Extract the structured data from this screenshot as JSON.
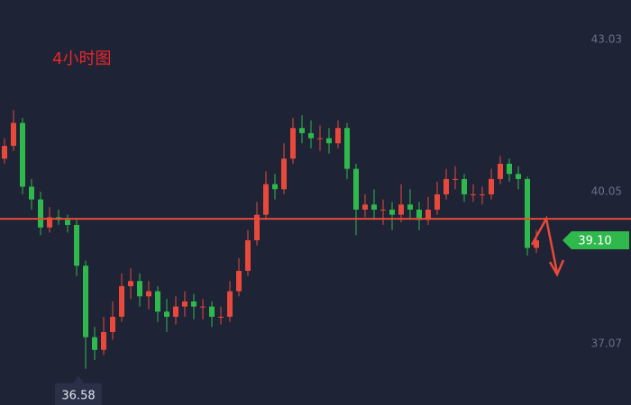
{
  "chart_data": {
    "type": "candlestick",
    "title": "4小时图",
    "open": [
      40.7,
      40.95,
      41.4,
      40.15,
      39.9,
      39.35,
      39.55,
      39.5,
      39.4,
      38.6,
      37.2,
      36.95,
      37.3,
      37.6,
      38.2,
      38.3,
      38.0,
      38.1,
      37.7,
      37.6,
      37.8,
      37.9,
      37.8,
      37.8,
      37.6,
      37.6,
      38.1,
      38.5,
      39.1,
      39.6,
      40.2,
      40.1,
      40.7,
      41.3,
      41.2,
      41.1,
      41.1,
      41.0,
      41.3,
      40.5,
      39.7,
      39.8,
      39.7,
      39.7,
      39.6,
      39.8,
      39.7,
      39.5,
      39.7,
      40.0,
      40.3,
      40.3,
      40.0,
      40.0,
      40.0,
      40.3,
      40.6,
      40.4,
      40.3,
      38.95
    ],
    "high": [
      41.1,
      41.65,
      41.5,
      40.3,
      40.05,
      39.75,
      39.7,
      39.6,
      39.5,
      38.7,
      37.4,
      37.6,
      37.9,
      38.45,
      38.55,
      38.45,
      38.3,
      38.2,
      37.95,
      38.0,
      38.1,
      38.05,
      37.95,
      37.9,
      37.8,
      38.3,
      38.75,
      39.3,
      39.85,
      40.45,
      40.4,
      41.0,
      41.5,
      41.55,
      41.45,
      41.35,
      41.3,
      41.45,
      41.4,
      40.6,
      40.0,
      40.1,
      39.9,
      39.85,
      40.2,
      40.1,
      39.85,
      39.95,
      40.25,
      40.5,
      40.55,
      40.4,
      40.2,
      40.15,
      40.5,
      40.75,
      40.7,
      40.55,
      40.35,
      39.3
    ],
    "low": [
      40.6,
      40.85,
      40.0,
      39.7,
      39.2,
      39.25,
      39.4,
      39.25,
      38.4,
      36.58,
      36.75,
      36.85,
      37.15,
      37.5,
      37.95,
      37.8,
      37.75,
      37.5,
      37.3,
      37.45,
      37.6,
      37.55,
      37.55,
      37.4,
      37.45,
      37.5,
      38.0,
      38.4,
      39.0,
      39.5,
      39.9,
      40.0,
      40.6,
      41.0,
      40.9,
      40.85,
      40.8,
      40.9,
      40.3,
      39.2,
      39.55,
      39.5,
      39.4,
      39.3,
      39.45,
      39.5,
      39.3,
      39.4,
      39.6,
      39.9,
      40.1,
      39.85,
      39.85,
      39.8,
      39.9,
      40.2,
      40.25,
      40.1,
      38.8,
      38.85
    ],
    "close": [
      40.95,
      41.4,
      40.15,
      39.9,
      39.35,
      39.55,
      39.5,
      39.4,
      38.6,
      37.2,
      36.95,
      37.3,
      37.6,
      38.2,
      38.3,
      38.0,
      38.1,
      37.7,
      37.6,
      37.8,
      37.9,
      37.8,
      37.8,
      37.6,
      37.6,
      38.1,
      38.5,
      39.1,
      39.6,
      40.2,
      40.1,
      40.7,
      41.3,
      41.2,
      41.1,
      41.1,
      41.0,
      41.3,
      40.5,
      39.7,
      39.8,
      39.7,
      39.7,
      39.6,
      39.8,
      39.7,
      39.5,
      39.7,
      40.0,
      40.3,
      40.3,
      40.0,
      40.0,
      40.0,
      40.3,
      40.6,
      40.4,
      40.3,
      38.95,
      39.1
    ],
    "up_color": "#e8493a",
    "down_color": "#2fb84c",
    "ylim": [
      35.87,
      43.81
    ],
    "yticks": [
      37.07,
      40.05,
      43.03
    ],
    "hline": {
      "value": 39.52,
      "color": "#e8493a"
    },
    "last_price": {
      "value": 39.1,
      "label": "39.10",
      "color": "#2fb84c"
    },
    "low_marker": {
      "index": 9,
      "value": 36.58,
      "label": "36.58"
    }
  }
}
